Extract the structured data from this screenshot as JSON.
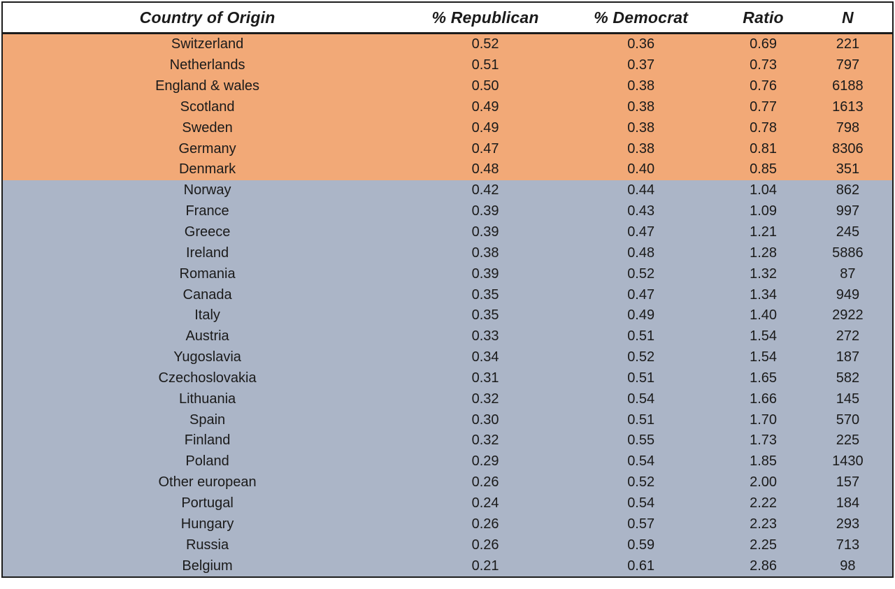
{
  "page": {
    "background_color": "#ffffff",
    "border_color": "#1c1c1c",
    "text_color": "#1a1a1a",
    "header_background": "#ffffff"
  },
  "chart_data": {
    "type": "table",
    "title": "",
    "columns": [
      "Country of Origin",
      "% Republican",
      "% Democrat",
      "Ratio",
      "N"
    ],
    "layout_hints": {
      "header_style": "bold-italic",
      "cell_alignment": "center",
      "grid": "outer-frame-only",
      "group_band_colors": [
        "#F2A977",
        "#ABB5C7"
      ]
    },
    "row_groups": [
      {
        "group": "ratio-below-one",
        "highlight_color": "#F2A977",
        "rows": [
          [
            "Switzerland",
            "0.52",
            "0.36",
            "0.69",
            "221"
          ],
          [
            "Netherlands",
            "0.51",
            "0.37",
            "0.73",
            "797"
          ],
          [
            "England & wales",
            "0.50",
            "0.38",
            "0.76",
            "6188"
          ],
          [
            "Scotland",
            "0.49",
            "0.38",
            "0.77",
            "1613"
          ],
          [
            "Sweden",
            "0.49",
            "0.38",
            "0.78",
            "798"
          ],
          [
            "Germany",
            "0.47",
            "0.38",
            "0.81",
            "8306"
          ],
          [
            "Denmark",
            "0.48",
            "0.40",
            "0.85",
            "351"
          ]
        ]
      },
      {
        "group": "ratio-above-one",
        "highlight_color": "#ABB5C7",
        "rows": [
          [
            "Norway",
            "0.42",
            "0.44",
            "1.04",
            "862"
          ],
          [
            "France",
            "0.39",
            "0.43",
            "1.09",
            "997"
          ],
          [
            "Greece",
            "0.39",
            "0.47",
            "1.21",
            "245"
          ],
          [
            "Ireland",
            "0.38",
            "0.48",
            "1.28",
            "5886"
          ],
          [
            "Romania",
            "0.39",
            "0.52",
            "1.32",
            "87"
          ],
          [
            "Canada",
            "0.35",
            "0.47",
            "1.34",
            "949"
          ],
          [
            "Italy",
            "0.35",
            "0.49",
            "1.40",
            "2922"
          ],
          [
            "Austria",
            "0.33",
            "0.51",
            "1.54",
            "272"
          ],
          [
            "Yugoslavia",
            "0.34",
            "0.52",
            "1.54",
            "187"
          ],
          [
            "Czechoslovakia",
            "0.31",
            "0.51",
            "1.65",
            "582"
          ],
          [
            "Lithuania",
            "0.32",
            "0.54",
            "1.66",
            "145"
          ],
          [
            "Spain",
            "0.30",
            "0.51",
            "1.70",
            "570"
          ],
          [
            "Finland",
            "0.32",
            "0.55",
            "1.73",
            "225"
          ],
          [
            "Poland",
            "0.29",
            "0.54",
            "1.85",
            "1430"
          ],
          [
            "Other european",
            "0.26",
            "0.52",
            "2.00",
            "157"
          ],
          [
            "Portugal",
            "0.24",
            "0.54",
            "2.22",
            "184"
          ],
          [
            "Hungary",
            "0.26",
            "0.57",
            "2.23",
            "293"
          ],
          [
            "Russia",
            "0.26",
            "0.59",
            "2.25",
            "713"
          ],
          [
            "Belgium",
            "0.21",
            "0.61",
            "2.86",
            "98"
          ]
        ]
      }
    ]
  }
}
